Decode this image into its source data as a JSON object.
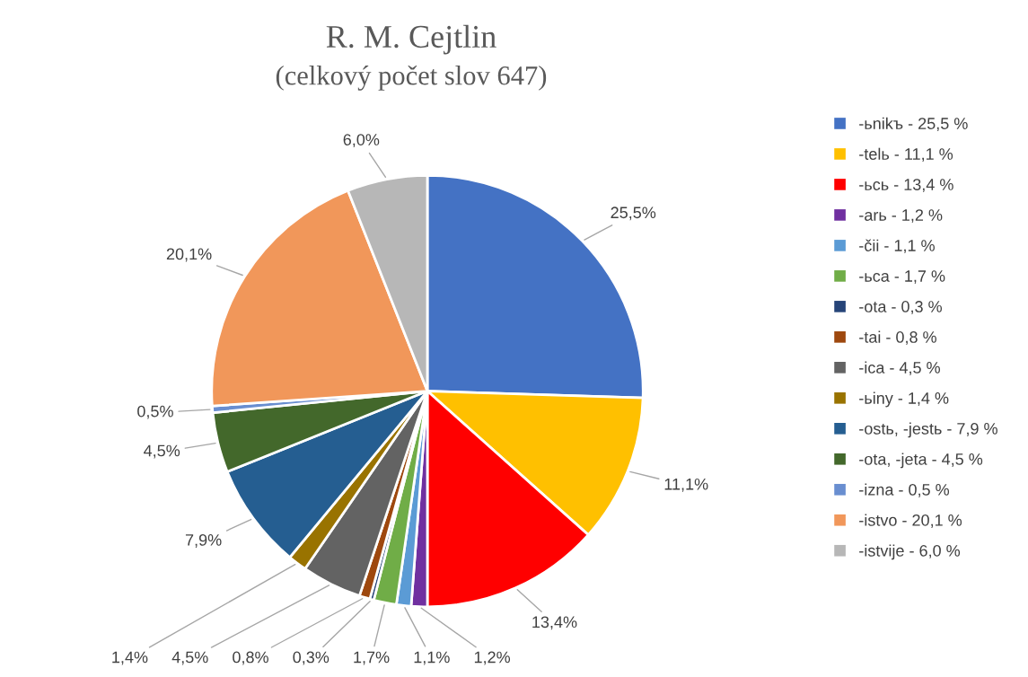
{
  "chart_data": {
    "type": "pie",
    "title": "R. M. Cejtlin",
    "subtitle": "(celkový počet slov 647)",
    "categories": [
      "-ьnikъ - 25,5 %",
      "-telь - 11,1 %",
      "-ьcь - 13,4 %",
      "-arь - 1,2 %",
      "-čii - 1,1 %",
      "-ьca - 1,7 %",
      "-ota - 0,3 %",
      "-tai - 0,8 %",
      "-ica - 4,5 %",
      "-ьiny - 1,4 %",
      "-ostь, -jestь - 7,9 %",
      "-ota, -jeta - 4,5 %",
      "-izna - 0,5 %",
      "-istvo - 20,1 %",
      "-istvije - 6,0 %"
    ],
    "values": [
      25.5,
      11.1,
      13.4,
      1.2,
      1.1,
      1.7,
      0.3,
      0.8,
      4.5,
      1.4,
      7.9,
      4.5,
      0.5,
      20.1,
      6.0
    ],
    "value_labels": [
      "25,5%",
      "11,1%",
      "13,4%",
      "1,2%",
      "1,1%",
      "1,7%",
      "0,3%",
      "0,8%",
      "4,5%",
      "1,4%",
      "7,9%",
      "4,5%",
      "0,5%",
      "20,1%",
      "6,0%"
    ],
    "colors": [
      "#4472c4",
      "#ffc000",
      "#ff0000",
      "#7030a0",
      "#5b9bd5",
      "#70ad47",
      "#264478",
      "#9e480e",
      "#636363",
      "#997300",
      "#255e91",
      "#43682b",
      "#698ed0",
      "#f1975a",
      "#b7b7b7"
    ],
    "legend": "right"
  }
}
